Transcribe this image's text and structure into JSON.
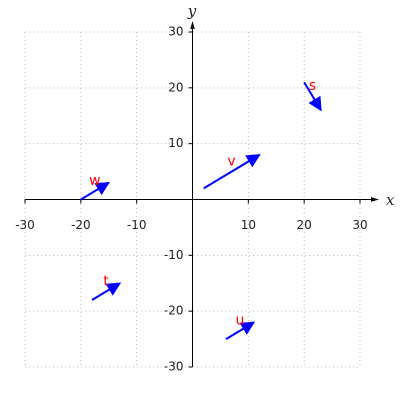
{
  "chart_data": {
    "type": "quiver",
    "labels": [
      "w",
      "v",
      "s",
      "t",
      "u"
    ],
    "x": [
      -20,
      2,
      20,
      -18,
      6
    ],
    "y": [
      0,
      2,
      21,
      -18,
      -25
    ],
    "dx": [
      5,
      10,
      3,
      5,
      5
    ],
    "dy": [
      3,
      6,
      -5,
      3,
      3
    ],
    "color": "#0000ff",
    "label_color": "#ff0000",
    "xlabel": "x",
    "ylabel": "y",
    "xlim": [
      -30,
      30
    ],
    "ylim": [
      -30,
      30
    ],
    "xticks": [
      -30,
      -20,
      -10,
      10,
      20,
      30
    ],
    "yticks": [
      -30,
      -20,
      -10,
      10,
      20,
      30
    ],
    "grid": true
  }
}
